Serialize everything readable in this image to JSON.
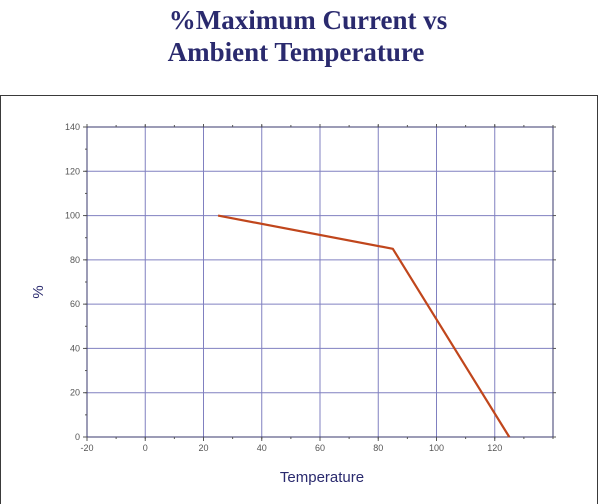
{
  "chart_data": {
    "type": "line",
    "title_line1": "%Maximum Current vs",
    "title_line2": "Ambient Temperature",
    "xlabel": "Temperature",
    "ylabel": "%",
    "xlim": [
      -20,
      140
    ],
    "ylim": [
      0,
      140
    ],
    "x_ticks": [
      -20,
      0,
      20,
      40,
      60,
      80,
      100,
      120
    ],
    "y_ticks": [
      0,
      20,
      40,
      60,
      80,
      100,
      120,
      140
    ],
    "grid": true,
    "series": [
      {
        "x": [
          25,
          85,
          125
        ],
        "y": [
          100,
          85,
          0
        ]
      }
    ],
    "colors": {
      "line": "#c0461c",
      "grid": "#8080c0",
      "title": "#2a2a6e"
    }
  }
}
